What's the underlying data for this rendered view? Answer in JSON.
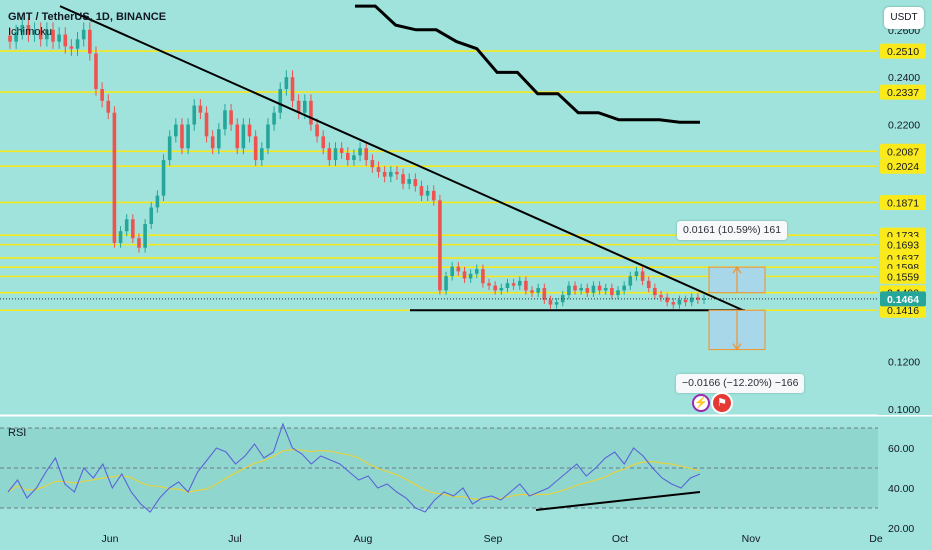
{
  "header": {
    "title": "GMT / TetherUS, 1D, BINANCE",
    "indicator": "Ichimoku",
    "currency": "USDT",
    "rsi_label": "RSI"
  },
  "measure": {
    "up_label": "0.0161 (10.59%) 161",
    "down_label": "−0.0166 (−12.20%) −166"
  },
  "events": {
    "bolt_icon": "lightning-icon",
    "flag_icon": "us-flag-icon"
  },
  "colors": {
    "background": "#9fe3dc",
    "up_candle": "#26a69a",
    "down_candle": "#ef5350",
    "level_line": "#f4e81c",
    "level_label_bg": "#fbea1b",
    "current_price_bg": "#26a69a",
    "trendline": "#000000",
    "rsi_line": "#5b63d6",
    "rsi_ma": "#e4d243",
    "measure_box": "#a8d7ea",
    "measure_arrow": "#f0922b"
  },
  "chart_data": [
    {
      "type": "candlestick",
      "title": "GMT / TetherUS, 1D, BINANCE",
      "x_ticks": [
        "Jun",
        "Jul",
        "Aug",
        "Sep",
        "Oct",
        "Nov",
        "De"
      ],
      "y_ticks": [
        "0.2600",
        "0.2400",
        "0.2200",
        "0.1200",
        "0.1000"
      ],
      "ylim": [
        0.0978,
        0.2692
      ],
      "price_levels": [
        "0.2510",
        "0.2337",
        "0.2087",
        "0.2024",
        "0.1871",
        "0.1733",
        "0.1693",
        "0.1637",
        "0.1598",
        "0.1559",
        "0.1490",
        "0.1416"
      ],
      "current_price": "0.1464",
      "ohlc_closes_approx": [
        0.255,
        0.259,
        0.262,
        0.258,
        0.26,
        0.256,
        0.26,
        0.255,
        0.258,
        0.253,
        0.252,
        0.256,
        0.26,
        0.25,
        0.235,
        0.23,
        0.225,
        0.17,
        0.175,
        0.18,
        0.172,
        0.168,
        0.178,
        0.185,
        0.19,
        0.205,
        0.215,
        0.22,
        0.21,
        0.22,
        0.228,
        0.225,
        0.215,
        0.21,
        0.218,
        0.226,
        0.22,
        0.21,
        0.22,
        0.215,
        0.205,
        0.21,
        0.22,
        0.225,
        0.235,
        0.24,
        0.23,
        0.225,
        0.23,
        0.22,
        0.215,
        0.21,
        0.205,
        0.21,
        0.208,
        0.205,
        0.207,
        0.21,
        0.205,
        0.202,
        0.2,
        0.198,
        0.2,
        0.199,
        0.195,
        0.197,
        0.194,
        0.19,
        0.192,
        0.188,
        0.15,
        0.156,
        0.16,
        0.158,
        0.155,
        0.157,
        0.159,
        0.153,
        0.152,
        0.15,
        0.151,
        0.153,
        0.152,
        0.154,
        0.15,
        0.149,
        0.151,
        0.146,
        0.144,
        0.145,
        0.148,
        0.152,
        0.15,
        0.151,
        0.149,
        0.152,
        0.15,
        0.151,
        0.148,
        0.15,
        0.152,
        0.156,
        0.158,
        0.154,
        0.151,
        0.148,
        0.147,
        0.145,
        0.144,
        0.146,
        0.145,
        0.147,
        0.146,
        0.1464
      ],
      "ichimoku_line_approx": [
        0.27,
        0.27,
        0.262,
        0.26,
        0.26,
        0.255,
        0.252,
        0.242,
        0.242,
        0.233,
        0.233,
        0.225,
        0.225,
        0.222,
        0.222,
        0.222,
        0.221,
        0.221
      ]
    },
    {
      "type": "line",
      "title": "RSI",
      "y_ticks": [
        "60.00",
        "40.00",
        "20.00"
      ],
      "ylim": [
        14,
        74
      ],
      "bands": [
        70,
        50,
        30
      ],
      "values_approx": [
        38,
        44,
        35,
        40,
        48,
        55,
        42,
        38,
        50,
        45,
        52,
        40,
        47,
        38,
        32,
        28,
        35,
        40,
        43,
        38,
        48,
        54,
        60,
        58,
        52,
        56,
        62,
        55,
        58,
        72,
        60,
        57,
        52,
        56,
        54,
        52,
        48,
        44,
        46,
        40,
        42,
        38,
        35,
        30,
        28,
        34,
        38,
        36,
        40,
        32,
        35,
        36,
        34,
        38,
        42,
        36,
        38,
        40,
        44,
        48,
        52,
        46,
        50,
        55,
        58,
        52,
        60,
        56,
        50,
        45,
        42,
        40,
        45,
        47
      ]
    }
  ]
}
